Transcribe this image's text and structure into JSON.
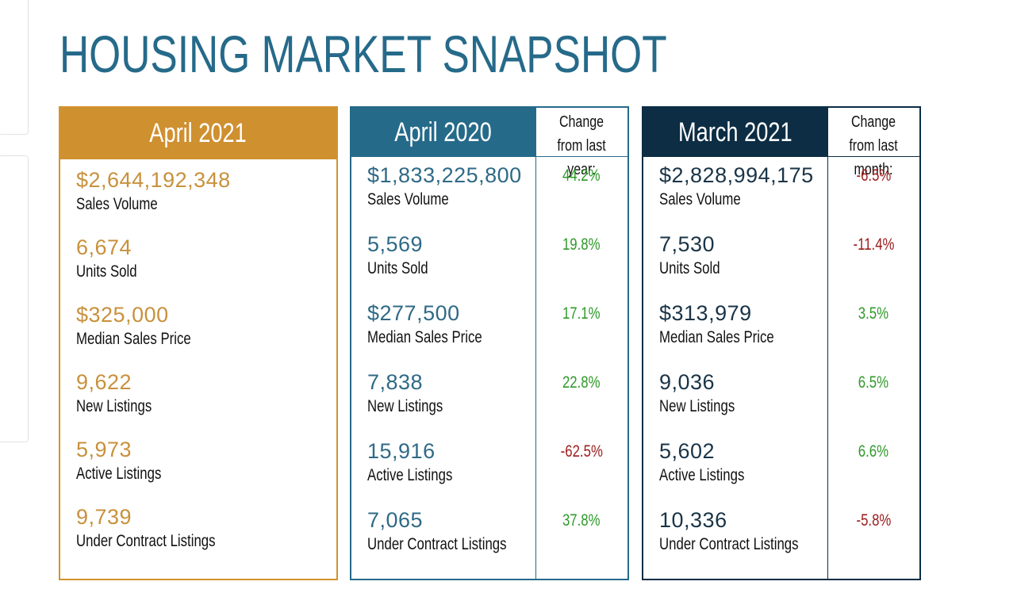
{
  "title": "HOUSING MARKET SNAPSHOT",
  "panels": [
    {
      "header": "April 2021",
      "theme": "gold",
      "rows": [
        {
          "value": "$2,644,192,348",
          "label": "Sales Volume"
        },
        {
          "value": "6,674",
          "label": "Units Sold"
        },
        {
          "value": "$325,000",
          "label": "Median Sales Price"
        },
        {
          "value": "9,622",
          "label": "New Listings"
        },
        {
          "value": "5,973",
          "label": "Active Listings"
        },
        {
          "value": "9,739",
          "label": "Under Contract Listings"
        }
      ]
    },
    {
      "header": "April 2020",
      "change_header": "Change from last year:",
      "theme": "blue",
      "rows": [
        {
          "value": "$1,833,225,800",
          "label": "Sales Volume",
          "change": "44.2%"
        },
        {
          "value": "5,569",
          "label": "Units Sold",
          "change": "19.8%"
        },
        {
          "value": "$277,500",
          "label": "Median Sales Price",
          "change": "17.1%"
        },
        {
          "value": "7,838",
          "label": "New Listings",
          "change": "22.8%"
        },
        {
          "value": "15,916",
          "label": "Active Listings",
          "change": "-62.5%"
        },
        {
          "value": "7,065",
          "label": "Under Contract Listings",
          "change": "37.8%"
        }
      ]
    },
    {
      "header": "March 2021",
      "change_header": "Change from last month:",
      "theme": "navy",
      "rows": [
        {
          "value": "$2,828,994,175",
          "label": "Sales Volume",
          "change": "-6.5%"
        },
        {
          "value": "7,530",
          "label": "Units Sold",
          "change": "-11.4%"
        },
        {
          "value": "$313,979",
          "label": "Median Sales Price",
          "change": "3.5%"
        },
        {
          "value": "9,036",
          "label": "New Listings",
          "change": "6.5%"
        },
        {
          "value": "5,602",
          "label": "Active Listings",
          "change": "6.6%"
        },
        {
          "value": "10,336",
          "label": "Under Contract Listings",
          "change": "-5.8%"
        }
      ]
    }
  ]
}
